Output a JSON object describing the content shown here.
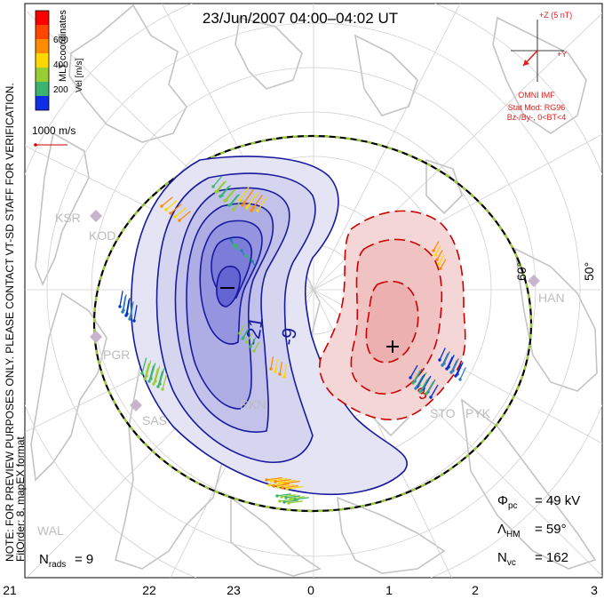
{
  "title": "23/Jun/2007 04:00–04:02 UT",
  "coord_system": "MLT coordinates",
  "colorbar": {
    "label": "Vel [m/s]",
    "ticks": [
      "600",
      "400",
      "200"
    ],
    "colors": [
      "#0000ff",
      "#2c7fb8",
      "#3cb371",
      "#9acd32",
      "#ffd700",
      "#ff8c00",
      "#ff0000"
    ]
  },
  "scale_vector": "1000 m/s",
  "imf": {
    "z_label": "+Z (5 nT)",
    "y_label": "+Y",
    "source": "OMNI IMF",
    "model": "Stat Mod: RG96",
    "condition": "Bz-/By-, 0<BT<4",
    "color": "#e0201c"
  },
  "side_note_1": "NOTE: FOR PREVIEW PURPOSES ONLY. PLEASE CONTACT VT-SD STAFF FOR VERIFICATION.",
  "side_note_2": "FitOrder: 8, mapEX format",
  "mlt_labels": [
    "21",
    "22",
    "23",
    "0",
    "1",
    "2",
    "3"
  ],
  "lat_labels": [
    "60°",
    "50°"
  ],
  "stations": [
    "KSR",
    "KOD",
    "PGR",
    "SAS",
    "RKN",
    "STO",
    "PYK",
    "HAN",
    "WAL"
  ],
  "contour_labels": [
    "-21",
    "-9",
    "3"
  ],
  "stats": {
    "pcp_label": "Φpc",
    "pcp_value": "= 49 kV",
    "hm_label": "ΛHM",
    "hm_value": "= 59°",
    "nvc_label": "Nvc",
    "nvc_value": "= 162",
    "nrads_label": "Nrads",
    "nrads_value": "= 9"
  },
  "colors": {
    "negative_cell": "#0000cd",
    "positive_cell": "#cc0000",
    "heppner_maynard": "#000000",
    "coastline": "#bdbdbd"
  }
}
